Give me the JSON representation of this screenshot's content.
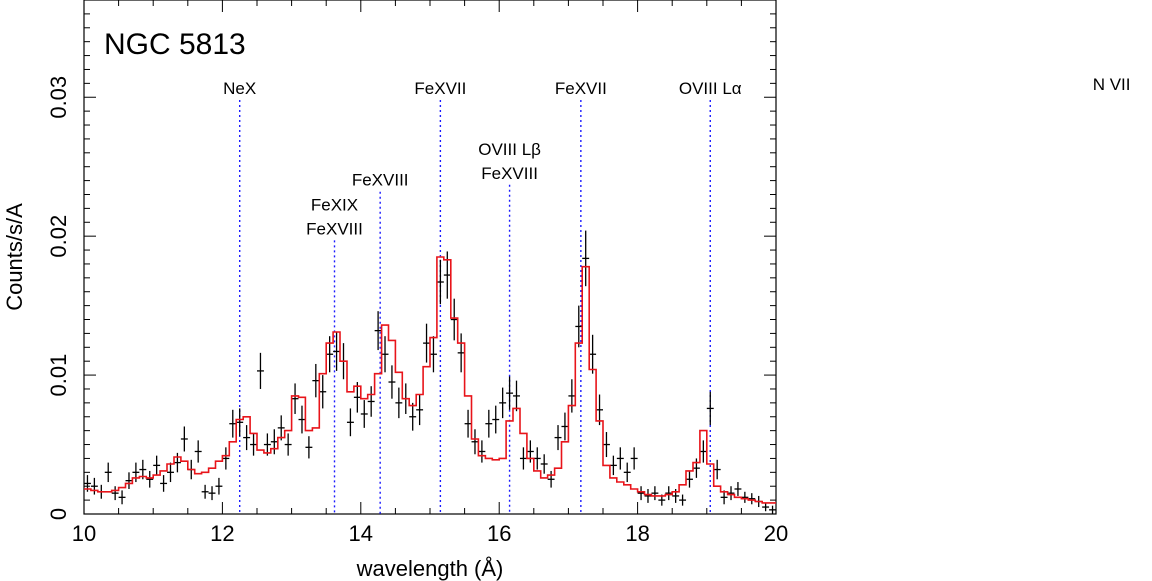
{
  "chart_data": {
    "type": "line",
    "title": "NGC 5813",
    "xlabel": "wavelength (Å)",
    "ylabel": "Counts/s/A",
    "xlim": [
      10,
      20
    ],
    "ylim": [
      0,
      0.037
    ],
    "xticks": [
      10,
      12,
      14,
      16,
      18,
      20
    ],
    "xtick_labels": [
      "10",
      "12",
      "14",
      "16",
      "18",
      "20"
    ],
    "yticks": [
      0,
      0.01,
      0.02,
      0.03
    ],
    "ytick_labels": [
      "0",
      "0.01",
      "0.02",
      "0.03"
    ],
    "grid": false,
    "model_color": "#e8141a",
    "data_color": "#000000",
    "marker_color": "#1a1aff",
    "line_markers": [
      {
        "lines": [
          "NeX"
        ],
        "x": 12.25,
        "top": 0.0298
      },
      {
        "lines": [
          "FeXIX",
          "FeXVIII"
        ],
        "x": 13.62,
        "top": 0.0197
      },
      {
        "lines": [
          "FeXVIII"
        ],
        "x": 14.28,
        "top": 0.0232
      },
      {
        "lines": [
          "FeXVII"
        ],
        "x": 15.15,
        "top": 0.0298
      },
      {
        "lines": [
          "OVIII Lβ",
          "FeXVIII"
        ],
        "x": 16.15,
        "top": 0.0237
      },
      {
        "lines": [
          "FeXVII"
        ],
        "x": 17.18,
        "top": 0.0298
      },
      {
        "lines": [
          "OVIII Lα"
        ],
        "x": 19.05,
        "top": 0.0298
      },
      {
        "lines": [
          "N VII"
        ],
        "x": 24.85,
        "top": null
      }
    ],
    "series": [
      {
        "kind": "model-step",
        "x": [
          10.0,
          10.1,
          10.2,
          10.3,
          10.4,
          10.5,
          10.6,
          10.7,
          10.8,
          10.9,
          11.0,
          11.1,
          11.2,
          11.3,
          11.4,
          11.5,
          11.6,
          11.7,
          11.8,
          11.9,
          12.0,
          12.1,
          12.2,
          12.3,
          12.4,
          12.5,
          12.6,
          12.7,
          12.8,
          12.9,
          13.0,
          13.1,
          13.2,
          13.3,
          13.4,
          13.5,
          13.6,
          13.7,
          13.8,
          13.9,
          14.0,
          14.1,
          14.2,
          14.3,
          14.4,
          14.5,
          14.6,
          14.7,
          14.8,
          14.9,
          15.0,
          15.1,
          15.2,
          15.3,
          15.4,
          15.5,
          15.6,
          15.7,
          15.8,
          15.9,
          16.0,
          16.1,
          16.2,
          16.3,
          16.4,
          16.5,
          16.6,
          16.7,
          16.8,
          16.9,
          17.0,
          17.1,
          17.2,
          17.3,
          17.4,
          17.5,
          17.6,
          17.7,
          17.8,
          17.9,
          18.0,
          18.1,
          18.2,
          18.3,
          18.4,
          18.5,
          18.6,
          18.7,
          18.8,
          18.9,
          19.0,
          19.1,
          19.2,
          19.3,
          19.4,
          19.5,
          19.6,
          19.7,
          19.8,
          19.9
        ],
        "values": [
          0.0018,
          0.0017,
          0.0016,
          0.0016,
          0.0017,
          0.0019,
          0.0022,
          0.0026,
          0.0027,
          0.0026,
          0.0028,
          0.0031,
          0.0036,
          0.0041,
          0.0038,
          0.0032,
          0.0029,
          0.003,
          0.0033,
          0.0038,
          0.0042,
          0.0052,
          0.0068,
          0.007,
          0.0058,
          0.0046,
          0.0044,
          0.0047,
          0.0055,
          0.006,
          0.0085,
          0.0084,
          0.006,
          0.0062,
          0.0101,
          0.0123,
          0.0131,
          0.011,
          0.0088,
          0.0092,
          0.0083,
          0.0086,
          0.0101,
          0.0136,
          0.0125,
          0.0102,
          0.0083,
          0.0078,
          0.0086,
          0.0106,
          0.0127,
          0.0185,
          0.0183,
          0.0141,
          0.0123,
          0.0085,
          0.0054,
          0.0042,
          0.004,
          0.0039,
          0.004,
          0.0067,
          0.0076,
          0.0058,
          0.004,
          0.0031,
          0.0026,
          0.0028,
          0.0033,
          0.0052,
          0.0078,
          0.0123,
          0.0178,
          0.0104,
          0.0067,
          0.0035,
          0.0026,
          0.0023,
          0.0021,
          0.0018,
          0.0016,
          0.0014,
          0.0013,
          0.0013,
          0.0014,
          0.0016,
          0.0021,
          0.0031,
          0.0037,
          0.006,
          0.0036,
          0.002,
          0.0016,
          0.0014,
          0.0012,
          0.0011,
          0.001,
          0.0009,
          0.0008,
          0.0008
        ]
      },
      {
        "kind": "data-crosses",
        "x": [
          10.05,
          10.15,
          10.25,
          10.35,
          10.45,
          10.55,
          10.65,
          10.75,
          10.85,
          10.95,
          11.05,
          11.15,
          11.25,
          11.35,
          11.45,
          11.55,
          11.65,
          11.75,
          11.85,
          11.95,
          12.05,
          12.15,
          12.25,
          12.35,
          12.45,
          12.55,
          12.65,
          12.75,
          12.85,
          12.95,
          13.05,
          13.15,
          13.25,
          13.35,
          13.45,
          13.55,
          13.65,
          13.75,
          13.85,
          13.95,
          14.05,
          14.15,
          14.25,
          14.35,
          14.45,
          14.55,
          14.65,
          14.75,
          14.85,
          14.95,
          15.05,
          15.15,
          15.25,
          15.35,
          15.45,
          15.55,
          15.65,
          15.75,
          15.85,
          15.95,
          16.05,
          16.15,
          16.25,
          16.35,
          16.45,
          16.55,
          16.65,
          16.75,
          16.85,
          16.95,
          17.05,
          17.15,
          17.25,
          17.35,
          17.45,
          17.55,
          17.65,
          17.75,
          17.85,
          17.95,
          18.05,
          18.15,
          18.25,
          18.35,
          18.45,
          18.55,
          18.65,
          18.75,
          18.85,
          18.95,
          19.05,
          19.15,
          19.25,
          19.35,
          19.45,
          19.55,
          19.65,
          19.75,
          19.85,
          19.95
        ],
        "values": [
          0.0022,
          0.002,
          0.0016,
          0.003,
          0.0015,
          0.0012,
          0.0024,
          0.003,
          0.0032,
          0.0025,
          0.0035,
          0.0022,
          0.003,
          0.0037,
          0.0054,
          0.0032,
          0.0045,
          0.0016,
          0.0015,
          0.002,
          0.004,
          0.0065,
          0.0066,
          0.0055,
          0.005,
          0.0103,
          0.005,
          0.0052,
          0.0062,
          0.005,
          0.0083,
          0.0068,
          0.0048,
          0.0096,
          0.0088,
          0.0115,
          0.0117,
          0.011,
          0.0066,
          0.0084,
          0.0072,
          0.0081,
          0.0132,
          0.0115,
          0.0095,
          0.008,
          0.0083,
          0.007,
          0.0075,
          0.0123,
          0.0115,
          0.0167,
          0.0172,
          0.014,
          0.0116,
          0.0065,
          0.0052,
          0.0045,
          0.0065,
          0.0068,
          0.008,
          0.0087,
          0.0085,
          0.004,
          0.0045,
          0.004,
          0.0036,
          0.0025,
          0.0055,
          0.0063,
          0.0085,
          0.0135,
          0.0184,
          0.0115,
          0.0075,
          0.005,
          0.0035,
          0.004,
          0.003,
          0.004,
          0.0015,
          0.0013,
          0.0015,
          0.001,
          0.0015,
          0.0013,
          0.001,
          0.0025,
          0.0033,
          0.0045,
          0.0076,
          0.0032,
          0.0012,
          0.0015,
          0.0018,
          0.0012,
          0.0011,
          0.0009,
          0.0005,
          0.0003
        ],
        "errors": [
          0.0006,
          0.0006,
          0.0005,
          0.0007,
          0.0005,
          0.0005,
          0.0006,
          0.0007,
          0.0007,
          0.0006,
          0.0007,
          0.0006,
          0.0007,
          0.0007,
          0.0009,
          0.0007,
          0.0008,
          0.0005,
          0.0005,
          0.0006,
          0.0008,
          0.001,
          0.001,
          0.0009,
          0.0008,
          0.0013,
          0.0008,
          0.0009,
          0.0009,
          0.0008,
          0.0011,
          0.001,
          0.0008,
          0.0012,
          0.0012,
          0.0013,
          0.0014,
          0.0013,
          0.001,
          0.0011,
          0.001,
          0.0011,
          0.0014,
          0.0013,
          0.0012,
          0.0011,
          0.0011,
          0.001,
          0.0011,
          0.0014,
          0.0013,
          0.0016,
          0.0017,
          0.0015,
          0.0014,
          0.001,
          0.0009,
          0.0008,
          0.001,
          0.001,
          0.0011,
          0.0012,
          0.0011,
          0.0008,
          0.0008,
          0.0008,
          0.0007,
          0.0006,
          0.0009,
          0.001,
          0.0012,
          0.0015,
          0.002,
          0.0014,
          0.0011,
          0.0009,
          0.0007,
          0.0008,
          0.0007,
          0.0008,
          0.0005,
          0.0005,
          0.0005,
          0.0004,
          0.0005,
          0.0005,
          0.0004,
          0.0006,
          0.0007,
          0.0008,
          0.0012,
          0.0007,
          0.0005,
          0.0005,
          0.0005,
          0.0004,
          0.0004,
          0.0004,
          0.0003,
          0.0003
        ]
      }
    ]
  }
}
